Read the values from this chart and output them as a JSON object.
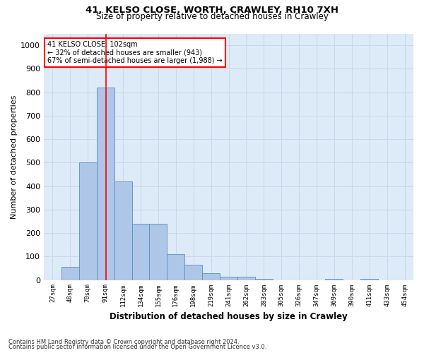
{
  "title1": "41, KELSO CLOSE, WORTH, CRAWLEY, RH10 7XH",
  "title2": "Size of property relative to detached houses in Crawley",
  "xlabel": "Distribution of detached houses by size in Crawley",
  "ylabel": "Number of detached properties",
  "bin_labels": [
    "27sqm",
    "48sqm",
    "70sqm",
    "91sqm",
    "112sqm",
    "134sqm",
    "155sqm",
    "176sqm",
    "198sqm",
    "219sqm",
    "241sqm",
    "262sqm",
    "283sqm",
    "305sqm",
    "326sqm",
    "347sqm",
    "369sqm",
    "390sqm",
    "411sqm",
    "433sqm",
    "454sqm"
  ],
  "bar_values": [
    0,
    55,
    500,
    820,
    420,
    240,
    240,
    110,
    65,
    30,
    15,
    15,
    5,
    0,
    0,
    0,
    5,
    0,
    5,
    0,
    0
  ],
  "bar_color": "#aec6e8",
  "bar_edge_color": "#5a8fc2",
  "property_line_x": 3.52,
  "annotation_line0": "41 KELSO CLOSE: 102sqm",
  "annotation_line1": "← 32% of detached houses are smaller (943)",
  "annotation_line2": "67% of semi-detached houses are larger (1,988) →",
  "grid_color": "#c8d8e8",
  "background_color": "#ddeaf7",
  "ylim": [
    0,
    1050
  ],
  "yticks": [
    0,
    100,
    200,
    300,
    400,
    500,
    600,
    700,
    800,
    900,
    1000
  ],
  "footer1": "Contains HM Land Registry data © Crown copyright and database right 2024.",
  "footer2": "Contains public sector information licensed under the Open Government Licence v3.0."
}
